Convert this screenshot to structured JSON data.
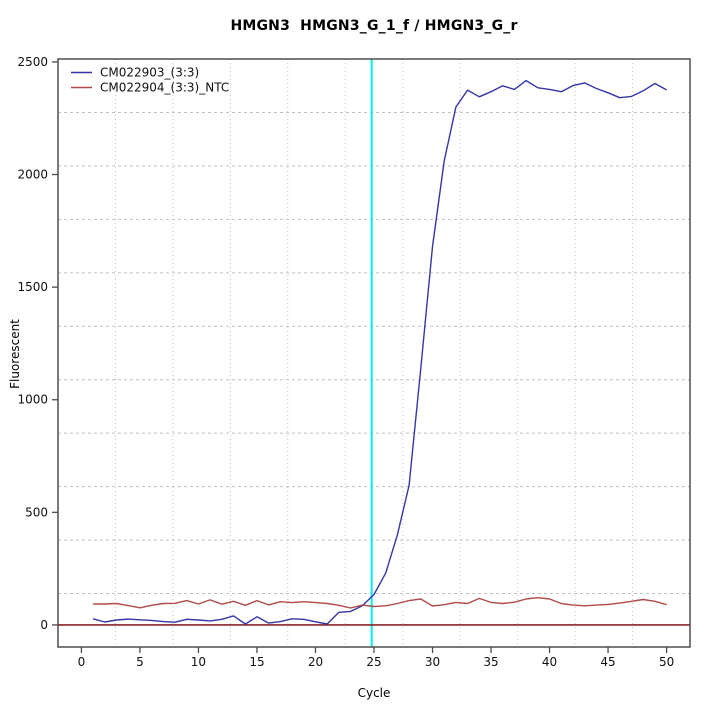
{
  "window": {
    "background": "#ffffff",
    "kind": "qPCR amplification plot"
  },
  "chart_data": {
    "type": "line",
    "title": "HMGN3  HMGN3_G_1_f / HMGN3_G_r",
    "xlabel": "Cycle",
    "ylabel": "Fluorescent",
    "x_ticks": [
      0,
      5,
      10,
      15,
      20,
      25,
      30,
      35,
      40,
      45,
      50
    ],
    "y_ticks": [
      0,
      500,
      1000,
      1500,
      2000,
      2500
    ],
    "xlim": [
      -2,
      52
    ],
    "ylim": [
      -98,
      2513
    ],
    "grid": {
      "shown": true,
      "divisions_x": 11,
      "divisions_y": 11,
      "color": "#c2c2c2"
    },
    "x": [
      1,
      2,
      3,
      4,
      5,
      6,
      7,
      8,
      9,
      10,
      11,
      12,
      13,
      14,
      15,
      16,
      17,
      18,
      19,
      20,
      21,
      22,
      23,
      24,
      25,
      26,
      27,
      28,
      29,
      30,
      31,
      32,
      33,
      34,
      35,
      36,
      37,
      38,
      39,
      40,
      41,
      42,
      43,
      44,
      45,
      46,
      47,
      48,
      49,
      50
    ],
    "series": [
      {
        "name": "CM022903_(3:3)",
        "color": "#3536a4",
        "values": [
          27,
          13,
          22,
          26,
          23,
          20,
          15,
          12,
          25,
          22,
          18,
          25,
          40,
          4,
          36,
          8,
          15,
          27,
          25,
          14,
          4,
          56,
          60,
          85,
          135,
          230,
          400,
          620,
          1140,
          1680,
          2060,
          2300,
          2375,
          2345,
          2368,
          2394,
          2378,
          2417,
          2385,
          2378,
          2368,
          2395,
          2407,
          2382,
          2363,
          2341,
          2347,
          2372,
          2404,
          2376
        ]
      },
      {
        "name": "CM022904_(3:3)_NTC",
        "color": "#b04a4a",
        "values": [
          93,
          93,
          95,
          86,
          76,
          87,
          95,
          96,
          108,
          93,
          111,
          92,
          105,
          87,
          108,
          89,
          103,
          99,
          103,
          99,
          95,
          87,
          75,
          88,
          82,
          85,
          95,
          108,
          115,
          84,
          90,
          100,
          95,
          118,
          100,
          95,
          101,
          115,
          121,
          115,
          95,
          88,
          85,
          88,
          91,
          97,
          105,
          113,
          105,
          90
        ]
      }
    ],
    "threshold_line": {
      "y": 0,
      "color": "#8b2525"
    },
    "ct_line": {
      "x": 24.8,
      "color": "#00eeee"
    },
    "legend": {
      "position": "top-left",
      "entries": [
        "CM022903_(3:3)",
        "CM022904_(3:3)_NTC"
      ]
    },
    "axis_color": "#4d4d4d",
    "text_color": "#111111"
  }
}
